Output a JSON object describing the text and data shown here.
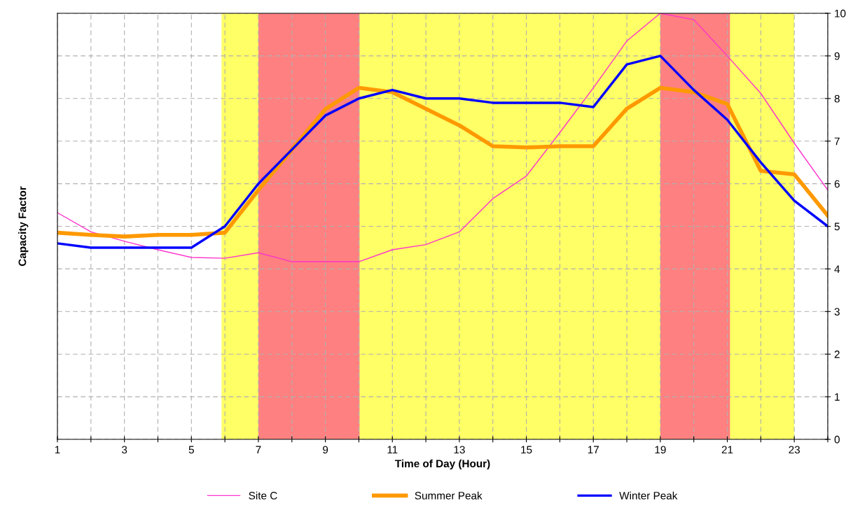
{
  "chart_data": {
    "type": "line",
    "xlabel": "Time of Day (Hour)",
    "ylabel": "Capacity Factor",
    "x": [
      1,
      2,
      3,
      4,
      5,
      6,
      7,
      8,
      9,
      10,
      11,
      12,
      13,
      14,
      15,
      16,
      17,
      18,
      19,
      20,
      21,
      22,
      23,
      24
    ],
    "series": [
      {
        "name": "Site C",
        "color": "#ff33cc",
        "values": [
          5.32,
          4.87,
          4.65,
          4.45,
          4.27,
          4.25,
          4.38,
          4.17,
          4.17,
          4.17,
          4.45,
          4.57,
          4.87,
          5.65,
          6.18,
          7.2,
          8.25,
          9.35,
          10.0,
          9.85,
          9.0,
          8.12,
          6.95,
          5.85
        ]
      },
      {
        "name": "Summer Peak",
        "color": "#ff9900",
        "values": [
          4.85,
          4.8,
          4.76,
          4.8,
          4.8,
          4.85,
          5.85,
          6.8,
          7.75,
          8.25,
          8.15,
          7.76,
          7.37,
          6.88,
          6.85,
          6.88,
          6.88,
          7.76,
          8.25,
          8.15,
          7.87,
          6.3,
          6.22,
          5.25
        ]
      },
      {
        "name": "Winter Peak",
        "color": "#0000ff",
        "values": [
          4.6,
          4.5,
          4.5,
          4.5,
          4.5,
          5.0,
          6.0,
          6.8,
          7.6,
          8.0,
          8.2,
          8.0,
          8.0,
          7.9,
          7.9,
          7.9,
          7.8,
          8.8,
          9.0,
          8.2,
          7.5,
          6.5,
          5.6,
          5.0
        ]
      }
    ],
    "bands": [
      {
        "axis": "x",
        "from": 5.9,
        "to": 23,
        "color": "#ffff66"
      },
      {
        "axis": "x",
        "from": 7,
        "to": 10.02,
        "color": "#ff8080"
      },
      {
        "axis": "x",
        "from": 19,
        "to": 21.08,
        "color": "#ff8080"
      }
    ],
    "xlim": [
      1,
      24
    ],
    "xticks": [
      1,
      {
        "value": 2,
        "label": null
      },
      3,
      {
        "value": 4,
        "label": null
      },
      5,
      {
        "value": 6,
        "label": null
      },
      7,
      {
        "value": 8,
        "label": null
      },
      9,
      {
        "value": 10,
        "label": null
      },
      11,
      {
        "value": 12,
        "label": null
      },
      13,
      {
        "value": 14,
        "label": null
      },
      15,
      {
        "value": 16,
        "label": null
      },
      17,
      {
        "value": 18,
        "label": null
      },
      19,
      {
        "value": 20,
        "label": null
      },
      21,
      {
        "value": 22,
        "label": null
      },
      23,
      {
        "value": 24,
        "label": null
      }
    ],
    "ylim": [
      0,
      10
    ],
    "yticks": [
      0,
      1,
      2,
      3,
      4,
      5,
      6,
      7,
      8,
      9,
      10
    ],
    "grid": true,
    "legend": "bottom",
    "marker": "none",
    "line_style": "solid"
  }
}
